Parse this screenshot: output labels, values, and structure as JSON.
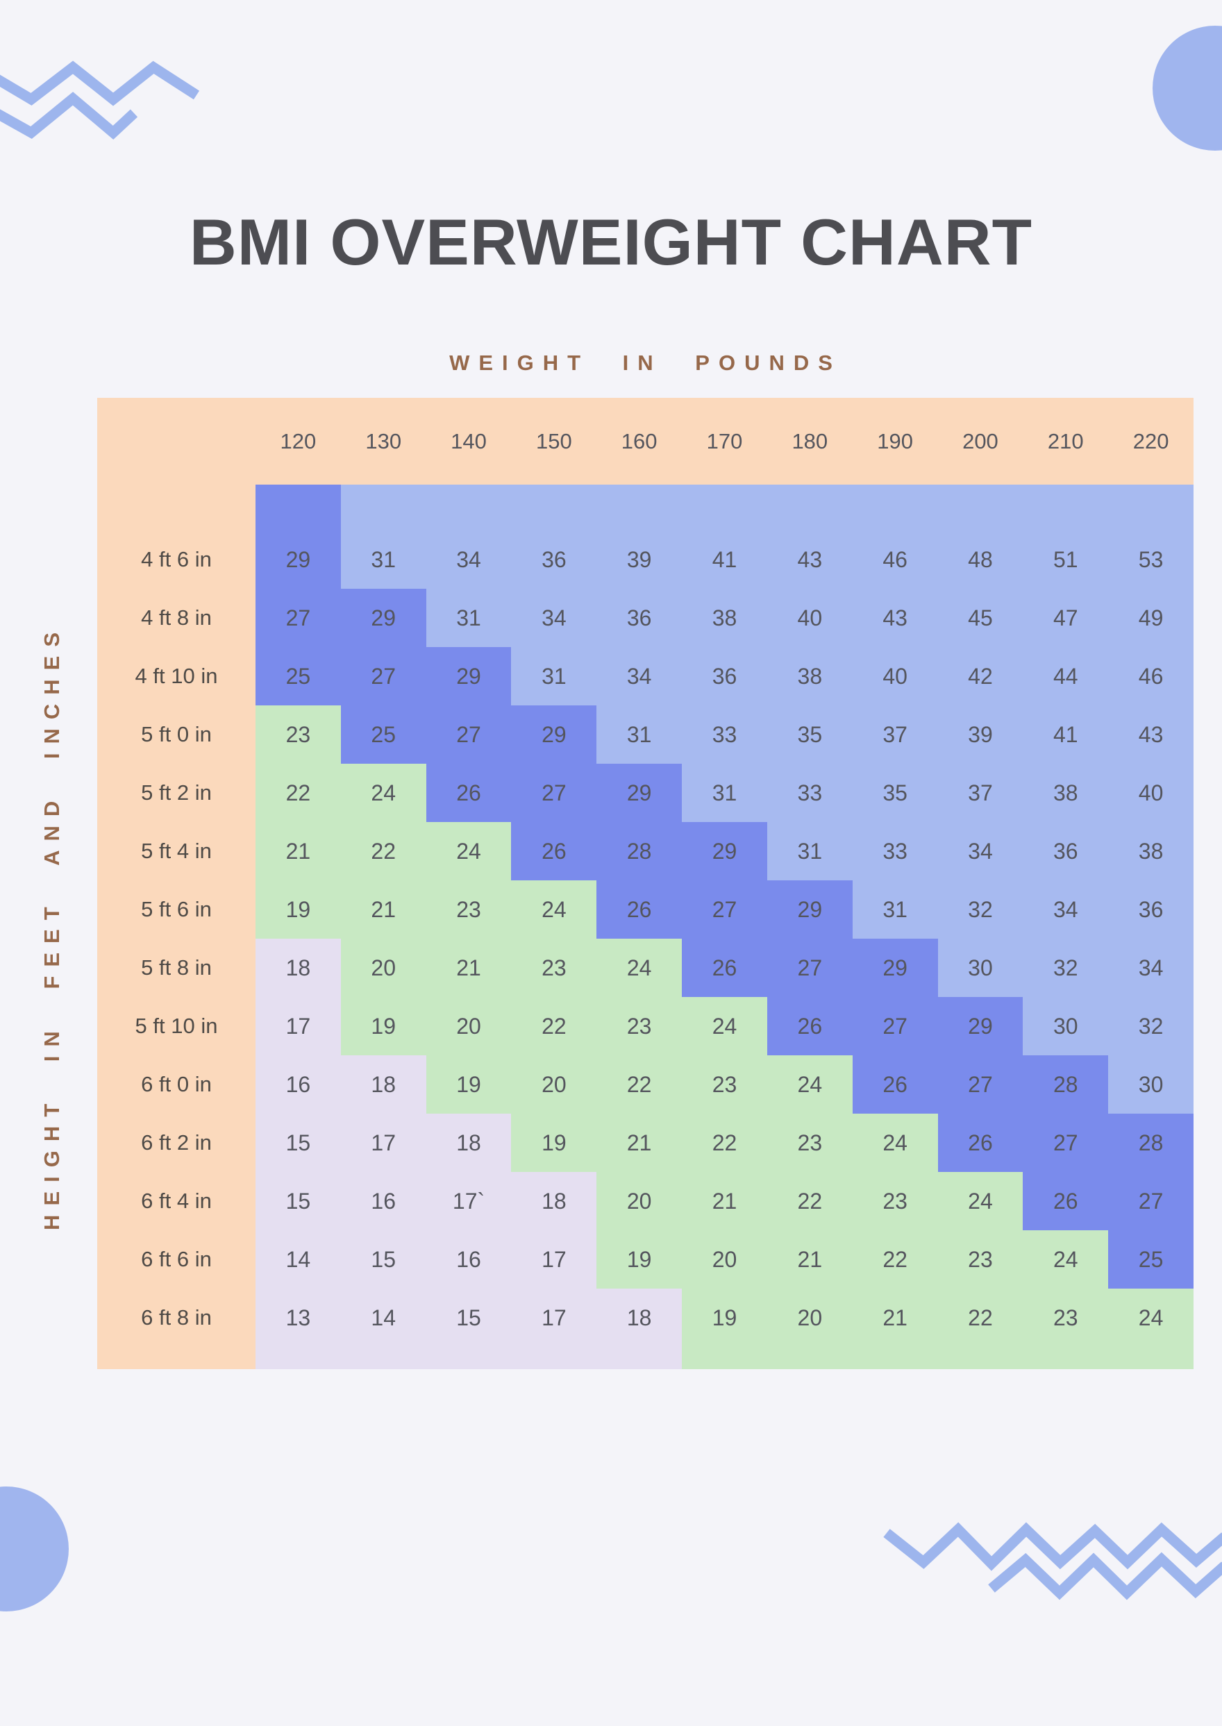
{
  "colors": {
    "background": "#f4f4f9",
    "table_header_bg": "#fbd9bc",
    "underweight": "#e5dff1",
    "normal": "#c8e9c3",
    "overweight": "#7a8bec",
    "obese": "#a7baf0",
    "title_text": "#4d4d52",
    "axis_label_text": "#96684a",
    "cell_text": "#54555d",
    "row_label_text": "#4e4a46",
    "decoration_zigzag": "#9db5ed",
    "decoration_circle": "#a0b5ee"
  },
  "title": "BMI OVERWEIGHT CHART",
  "chart_data": {
    "type": "heatmap",
    "title": "BMI OVERWEIGHT CHART",
    "xlabel": "WEIGHT IN POUNDS",
    "ylabel": "HEIGHT IN FEET AND INCHES",
    "x_categories": [
      "120",
      "130",
      "140",
      "150",
      "160",
      "170",
      "180",
      "190",
      "200",
      "210",
      "220"
    ],
    "y_categories": [
      "4 ft 6 in",
      "4 ft 8 in",
      "4 ft 10 in",
      "5 ft 0 in",
      "5 ft 2 in",
      "5 ft 4 in",
      "5 ft 6 in",
      "5 ft 8 in",
      "5 ft 10 in",
      "6 ft 0 in",
      "6 ft 2 in",
      "6 ft 4 in",
      "6 ft 6 in",
      "6 ft 8 in"
    ],
    "values": [
      [
        "29",
        "31",
        "34",
        "36",
        "39",
        "41",
        "43",
        "46",
        "48",
        "51",
        "53"
      ],
      [
        "27",
        "29",
        "31",
        "34",
        "36",
        "38",
        "40",
        "43",
        "45",
        "47",
        "49"
      ],
      [
        "25",
        "27",
        "29",
        "31",
        "34",
        "36",
        "38",
        "40",
        "42",
        "44",
        "46"
      ],
      [
        "23",
        "25",
        "27",
        "29",
        "31",
        "33",
        "35",
        "37",
        "39",
        "41",
        "43"
      ],
      [
        "22",
        "24",
        "26",
        "27",
        "29",
        "31",
        "33",
        "35",
        "37",
        "38",
        "40"
      ],
      [
        "21",
        "22",
        "24",
        "26",
        "28",
        "29",
        "31",
        "33",
        "34",
        "36",
        "38"
      ],
      [
        "19",
        "21",
        "23",
        "24",
        "26",
        "27",
        "29",
        "31",
        "32",
        "34",
        "36"
      ],
      [
        "18",
        "20",
        "21",
        "23",
        "24",
        "26",
        "27",
        "29",
        "30",
        "32",
        "34"
      ],
      [
        "17",
        "19",
        "20",
        "22",
        "23",
        "24",
        "26",
        "27",
        "29",
        "30",
        "32"
      ],
      [
        "16",
        "18",
        "19",
        "20",
        "22",
        "23",
        "24",
        "26",
        "27",
        "28",
        "30"
      ],
      [
        "15",
        "17",
        "18",
        "19",
        "21",
        "22",
        "23",
        "24",
        "26",
        "27",
        "28"
      ],
      [
        "15",
        "16",
        "17`",
        "18",
        "20",
        "21",
        "22",
        "23",
        "24",
        "26",
        "27"
      ],
      [
        "14",
        "15",
        "16",
        "17",
        "19",
        "20",
        "21",
        "22",
        "23",
        "24",
        "25"
      ],
      [
        "13",
        "14",
        "15",
        "17",
        "18",
        "19",
        "20",
        "21",
        "22",
        "23",
        "24"
      ]
    ],
    "color_scale": [
      {
        "label": "bmi-18-or-below",
        "max": 18,
        "color_key": "underweight"
      },
      {
        "label": "bmi-19-to-24",
        "max": 24,
        "color_key": "normal"
      },
      {
        "label": "bmi-25-to-29",
        "max": 29,
        "color_key": "overweight"
      },
      {
        "label": "bmi-30-and-above",
        "max": 1000,
        "color_key": "obese"
      }
    ],
    "legend_position": "none",
    "grid": false
  }
}
